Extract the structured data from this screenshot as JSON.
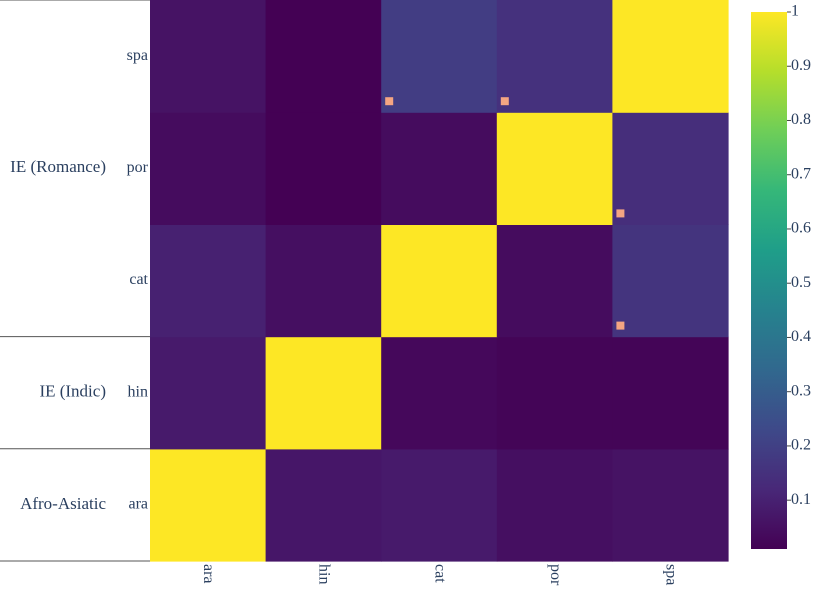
{
  "chart_data": {
    "type": "heatmap",
    "x_categories": [
      "ara",
      "hin",
      "cat",
      "por",
      "spa"
    ],
    "y_categories": [
      "ara",
      "hin",
      "cat",
      "por",
      "spa"
    ],
    "y_groups": [
      {
        "label": "Afro-Asiatic",
        "members": [
          "ara"
        ]
      },
      {
        "label": "IE (Indic)",
        "members": [
          "hin"
        ]
      },
      {
        "label": "IE (Romance)",
        "members": [
          "cat",
          "por",
          "spa"
        ]
      }
    ],
    "values": [
      [
        1.0,
        0.07,
        0.08,
        0.05,
        0.06
      ],
      [
        0.08,
        1.0,
        0.03,
        0.02,
        0.02
      ],
      [
        0.1,
        0.05,
        1.0,
        0.04,
        0.16
      ],
      [
        0.04,
        0.01,
        0.04,
        1.0,
        0.14
      ],
      [
        0.06,
        0.01,
        0.19,
        0.15,
        1.0
      ]
    ],
    "markers": [
      {
        "row": "spa",
        "col": "cat"
      },
      {
        "row": "spa",
        "col": "por"
      },
      {
        "row": "por",
        "col": "spa"
      },
      {
        "row": "cat",
        "col": "spa"
      }
    ],
    "marker_color": "#f4a582",
    "colorscale": "viridis",
    "colorbar": {
      "min": 0.01,
      "max": 1.0,
      "ticks": [
        "0.1",
        "0.2",
        "0.3",
        "0.4",
        "0.5",
        "0.6",
        "0.7",
        "0.8",
        "0.9",
        "1"
      ]
    }
  }
}
